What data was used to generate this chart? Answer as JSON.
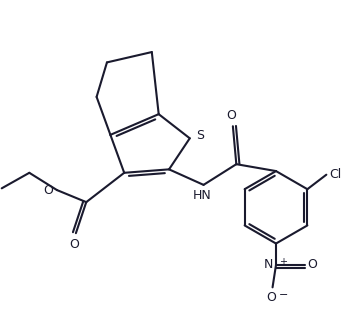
{
  "bg_color": "#ffffff",
  "line_color": "#1a1a2e",
  "line_width": 1.5,
  "figsize": [
    3.45,
    3.18
  ],
  "dpi": 100,
  "xlim": [
    0,
    10
  ],
  "ylim": [
    0,
    9.2
  ]
}
